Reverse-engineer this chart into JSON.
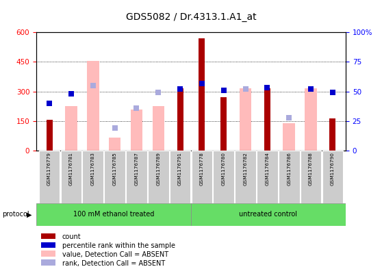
{
  "title": "GDS5082 / Dr.4313.1.A1_at",
  "samples": [
    "GSM1176779",
    "GSM1176781",
    "GSM1176783",
    "GSM1176785",
    "GSM1176787",
    "GSM1176789",
    "GSM1176791",
    "GSM1176778",
    "GSM1176780",
    "GSM1176782",
    "GSM1176784",
    "GSM1176786",
    "GSM1176788",
    "GSM1176790"
  ],
  "count_values": [
    155,
    null,
    null,
    null,
    null,
    null,
    315,
    570,
    270,
    null,
    315,
    null,
    null,
    165
  ],
  "absent_value_bars": [
    null,
    225,
    455,
    65,
    210,
    225,
    null,
    null,
    null,
    315,
    null,
    140,
    315,
    null
  ],
  "absent_rank_dots_pct": [
    null,
    null,
    55,
    19,
    36,
    49,
    null,
    null,
    null,
    52,
    null,
    28,
    52,
    null
  ],
  "dark_blue_dots_pct": [
    40,
    48,
    null,
    null,
    null,
    null,
    52,
    57,
    51,
    null,
    53,
    null,
    52,
    49
  ],
  "ylim_left": [
    0,
    600
  ],
  "ylim_right": [
    0,
    100
  ],
  "left_ticks": [
    0,
    150,
    300,
    450,
    600
  ],
  "right_ticks": [
    0,
    25,
    50,
    75,
    100
  ],
  "right_tick_labels": [
    "0",
    "25",
    "50",
    "75",
    "100%"
  ],
  "group1_label": "100 mM ethanol treated",
  "group2_label": "untreated control",
  "group1_count": 7,
  "group2_count": 7,
  "bar_color_dark_red": "#AA0000",
  "bar_color_pink": "#FFBBBB",
  "dot_color_dark_blue": "#0000CC",
  "dot_color_light_blue": "#AAAADD",
  "legend_items": [
    {
      "color": "#AA0000",
      "label": "count"
    },
    {
      "color": "#0000CC",
      "label": "percentile rank within the sample"
    },
    {
      "color": "#FFBBBB",
      "label": "value, Detection Call = ABSENT"
    },
    {
      "color": "#AAAADD",
      "label": "rank, Detection Call = ABSENT"
    }
  ]
}
